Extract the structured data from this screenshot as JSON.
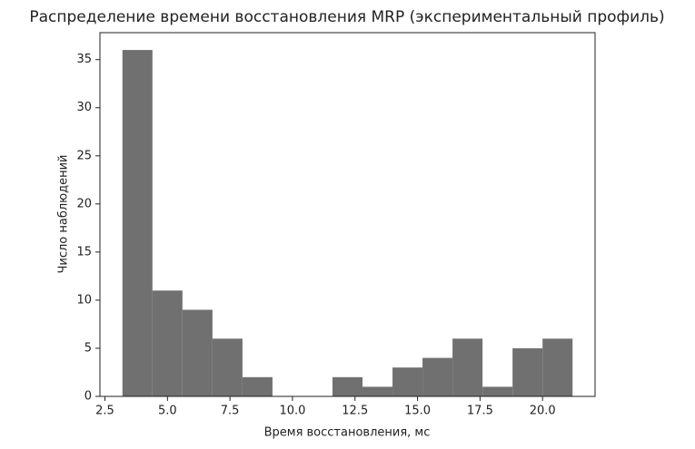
{
  "chart_data": {
    "type": "histogram",
    "title": "Распределение времени восстановления MRP (экспериментальный профиль)",
    "xlabel": "Время восстановления, мс",
    "ylabel": "Число наблюдений",
    "bins": [
      3.2,
      4.4,
      5.6,
      6.8,
      8.0,
      9.2,
      10.4,
      11.6,
      12.8,
      14.0,
      15.2,
      16.4,
      17.6,
      18.8,
      20.0,
      21.2
    ],
    "values": [
      36,
      11,
      9,
      6,
      2,
      0,
      0,
      2,
      1,
      3,
      4,
      6,
      1,
      5,
      6
    ],
    "color": "#707070",
    "xlim": [
      2.3,
      22.1
    ],
    "ylim": [
      0,
      37.8
    ],
    "xticks": [
      {
        "value": 2.5,
        "label": "2.5"
      },
      {
        "value": 5,
        "label": "5.0"
      },
      {
        "value": 7.5,
        "label": "7.5"
      },
      {
        "value": 10,
        "label": "10.0"
      },
      {
        "value": 12.5,
        "label": "12.5"
      },
      {
        "value": 15,
        "label": "15.0"
      },
      {
        "value": 17.5,
        "label": "17.5"
      },
      {
        "value": 20,
        "label": "20.0"
      }
    ],
    "yticks": [
      0,
      5,
      10,
      15,
      20,
      25,
      30,
      35
    ],
    "grid": false
  }
}
